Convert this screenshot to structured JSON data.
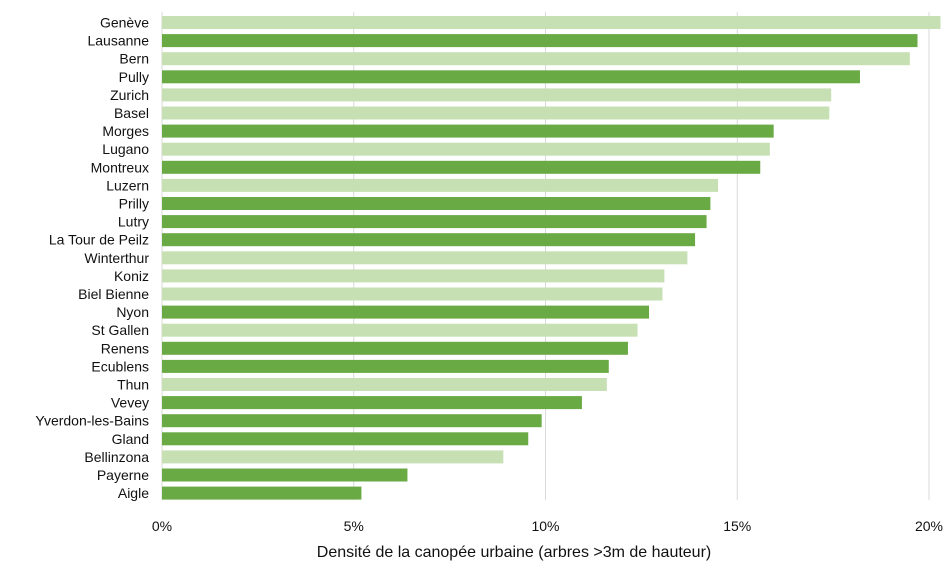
{
  "chart_data": {
    "type": "bar",
    "orientation": "horizontal",
    "categories": [
      "Genève",
      "Lausanne",
      "Bern",
      "Pully",
      "Zurich",
      "Basel",
      "Morges",
      "Lugano",
      "Montreux",
      "Luzern",
      "Prilly",
      "Lutry",
      "La Tour de Peilz",
      "Winterthur",
      "Koniz",
      "Biel Bienne",
      "Nyon",
      "St Gallen",
      "Renens",
      "Ecublens",
      "Thun",
      "Vevey",
      "Yverdon-les-Bains",
      "Gland",
      "Bellinzona",
      "Payerne",
      "Aigle"
    ],
    "values": [
      20.3,
      19.7,
      19.5,
      18.2,
      17.45,
      17.4,
      15.95,
      15.85,
      15.6,
      14.5,
      14.3,
      14.2,
      13.9,
      13.7,
      13.1,
      13.05,
      12.7,
      12.4,
      12.15,
      11.65,
      11.6,
      10.95,
      9.9,
      9.55,
      8.9,
      6.4,
      5.2
    ],
    "value_unit": "%",
    "xlabel": "Densité de la canopée urbaine (arbres >3m de hauteur)",
    "xlim": [
      0,
      20
    ],
    "xticks": [
      0,
      5,
      10,
      15,
      20
    ],
    "xtick_labels": [
      "0%",
      "5%",
      "10%",
      "15%",
      "20%"
    ],
    "grid": "vertical",
    "legend": "none",
    "highlight": [
      false,
      true,
      false,
      true,
      false,
      false,
      true,
      false,
      true,
      false,
      true,
      true,
      true,
      false,
      false,
      false,
      true,
      false,
      true,
      true,
      false,
      true,
      true,
      true,
      false,
      true,
      true
    ],
    "colors": {
      "highlight": "#6aaa45",
      "normal": "#c6e0b4",
      "grid": "#d9d9d9"
    }
  }
}
